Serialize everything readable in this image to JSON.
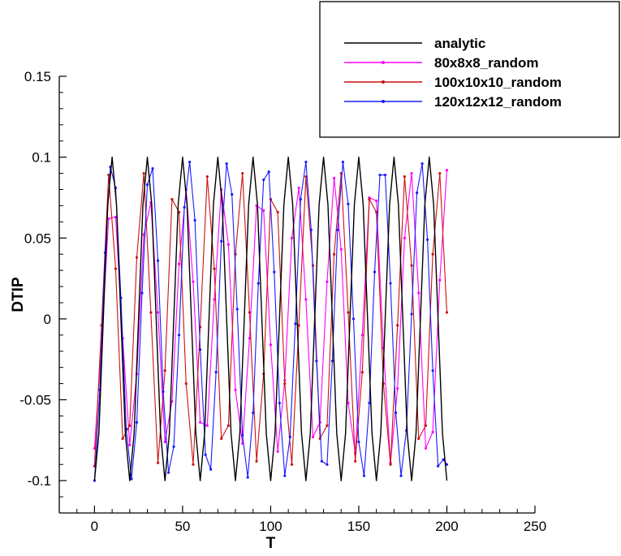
{
  "chart_data": {
    "type": "line",
    "title": "",
    "xlabel": "T",
    "ylabel": "DTIP",
    "xlim": [
      -20,
      250
    ],
    "ylim": [
      -0.12,
      0.15
    ],
    "xticks": [
      0,
      50,
      100,
      150,
      200,
      250
    ],
    "xtick_labels": [
      "0",
      "50",
      "100",
      "150",
      "200",
      "250"
    ],
    "yticks": [
      -0.1,
      -0.05,
      0,
      0.05,
      0.1,
      0.15
    ],
    "ytick_labels": [
      "-0.1",
      "-0.05",
      "0",
      "0.05",
      "0.1",
      "0.15"
    ],
    "grid": false,
    "legend_position": "top-right",
    "series": [
      {
        "name": "analytic",
        "color": "#000000",
        "marker": "none",
        "x": [
          0,
          2.5,
          5,
          7.5,
          10,
          12.5,
          15,
          17.5,
          20,
          22.5,
          25,
          27.5,
          30,
          32.5,
          35,
          37.5,
          40,
          42.5,
          45,
          47.5,
          50,
          52.5,
          55,
          57.5,
          60,
          62.5,
          65,
          67.5,
          70,
          72.5,
          75,
          77.5,
          80,
          82.5,
          85,
          87.5,
          90,
          92.5,
          95,
          97.5,
          100,
          102.5,
          105,
          107.5,
          110,
          112.5,
          115,
          117.5,
          120,
          122.5,
          125,
          127.5,
          130,
          132.5,
          135,
          137.5,
          140,
          142.5,
          145,
          147.5,
          150,
          152.5,
          155,
          157.5,
          160,
          162.5,
          165,
          167.5,
          170,
          172.5,
          175,
          177.5,
          180,
          182.5,
          185,
          187.5,
          190,
          192.5,
          195,
          197.5,
          200
        ],
        "y": [
          -0.1,
          -0.0707,
          0,
          0.0707,
          0.1,
          0.0707,
          0,
          -0.0707,
          -0.1,
          -0.0707,
          0,
          0.0707,
          0.1,
          0.0707,
          0,
          -0.0707,
          -0.1,
          -0.0707,
          0,
          0.0707,
          0.1,
          0.0707,
          0,
          -0.0707,
          -0.1,
          -0.0707,
          0,
          0.0707,
          0.1,
          0.0707,
          0,
          -0.0707,
          -0.1,
          -0.0707,
          0,
          0.0707,
          0.1,
          0.0707,
          0,
          -0.0707,
          -0.1,
          -0.0707,
          0,
          0.0707,
          0.1,
          0.0707,
          0,
          -0.0707,
          -0.1,
          -0.0707,
          0,
          0.0707,
          0.1,
          0.0707,
          0,
          -0.0707,
          -0.1,
          -0.0707,
          0,
          0.0707,
          0.1,
          0.0707,
          0,
          -0.0707,
          -0.1,
          -0.0707,
          0,
          0.0707,
          0.1,
          0.0707,
          0,
          -0.0707,
          -0.1,
          -0.0707,
          0,
          0.0707,
          0.1,
          0.0707,
          0,
          -0.0707,
          -0.1
        ]
      },
      {
        "name": "80x8x8_random",
        "color": "#ff00ff",
        "marker": "dot",
        "x": [
          0,
          4,
          8,
          12,
          16,
          20,
          24,
          28,
          32,
          36,
          40,
          44,
          48,
          52,
          56,
          60,
          64,
          68,
          72,
          76,
          80,
          84,
          88,
          92,
          96,
          100,
          104,
          108,
          112,
          116,
          120,
          124,
          128,
          132,
          136,
          140,
          144,
          148,
          152,
          156,
          160,
          164,
          168,
          172,
          176,
          180,
          184,
          188,
          192,
          196,
          200
        ],
        "y": [
          -0.08,
          -0.015,
          0.062,
          0.063,
          -0.012,
          -0.078,
          -0.034,
          0.052,
          0.072,
          0.004,
          -0.076,
          -0.051,
          0.034,
          0.08,
          0.023,
          -0.064,
          -0.066,
          0.012,
          0.08,
          0.046,
          -0.044,
          -0.077,
          -0.012,
          0.07,
          0.067,
          -0.016,
          -0.082,
          -0.038,
          0.05,
          0.081,
          0.012,
          -0.073,
          -0.064,
          0.023,
          0.087,
          0.043,
          -0.052,
          -0.083,
          -0.01,
          0.075,
          0.073,
          -0.018,
          -0.089,
          -0.043,
          0.05,
          0.09,
          0.016,
          -0.08,
          -0.07,
          0.024,
          0.092
        ]
      },
      {
        "name": "100x10x10_random",
        "color": "#cc1111",
        "marker": "dot",
        "x": [
          0,
          4,
          8,
          12,
          16,
          20,
          24,
          28,
          32,
          36,
          40,
          44,
          48,
          52,
          56,
          60,
          64,
          68,
          72,
          76,
          80,
          84,
          88,
          92,
          96,
          100,
          104,
          108,
          112,
          116,
          120,
          124,
          128,
          132,
          136,
          140,
          144,
          148,
          152,
          156,
          160,
          164,
          168,
          172,
          176,
          180,
          184,
          188,
          192,
          196,
          200
        ],
        "y": [
          -0.091,
          -0.004,
          0.089,
          0.031,
          -0.074,
          -0.066,
          0.038,
          0.09,
          0.004,
          -0.089,
          -0.032,
          0.074,
          0.066,
          -0.04,
          -0.09,
          -0.005,
          0.088,
          0.031,
          -0.074,
          -0.066,
          0.04,
          0.09,
          0.004,
          -0.088,
          -0.034,
          0.074,
          0.066,
          -0.04,
          -0.09,
          -0.004,
          0.088,
          0.033,
          -0.074,
          -0.066,
          0.04,
          0.09,
          0.004,
          -0.088,
          -0.033,
          0.074,
          0.066,
          -0.04,
          -0.09,
          -0.004,
          0.088,
          0.033,
          -0.074,
          -0.066,
          0.04,
          0.09,
          0.004
        ]
      },
      {
        "name": "120x12x12_random",
        "color": "#1a1aff",
        "marker": "dot",
        "x": [
          0,
          3,
          6,
          9,
          12,
          15,
          18,
          21,
          24,
          27,
          30,
          33,
          36,
          39,
          42,
          45,
          48,
          51,
          54,
          57,
          60,
          63,
          66,
          69,
          72,
          75,
          78,
          81,
          84,
          87,
          90,
          93,
          96,
          99,
          102,
          105,
          108,
          111,
          114,
          117,
          120,
          123,
          126,
          129,
          132,
          135,
          138,
          141,
          144,
          147,
          150,
          153,
          156,
          159,
          162,
          165,
          168,
          171,
          174,
          177,
          180,
          183,
          186,
          189,
          192,
          195,
          198,
          200
        ],
        "y": [
          -0.1,
          -0.044,
          0.041,
          0.094,
          0.081,
          0.013,
          -0.068,
          -0.099,
          -0.064,
          0.016,
          0.083,
          0.093,
          0.036,
          -0.045,
          -0.095,
          -0.079,
          -0.01,
          0.069,
          0.097,
          0.061,
          -0.019,
          -0.084,
          -0.093,
          -0.033,
          0.048,
          0.096,
          0.077,
          0.006,
          -0.072,
          -0.098,
          -0.058,
          0.022,
          0.086,
          0.091,
          0.029,
          -0.052,
          -0.097,
          -0.073,
          -0.003,
          0.074,
          0.097,
          0.055,
          -0.026,
          -0.088,
          -0.09,
          -0.026,
          0.055,
          0.097,
          0.071,
          0.0,
          -0.076,
          -0.097,
          -0.052,
          0.029,
          0.089,
          0.089,
          0.022,
          -0.058,
          -0.097,
          -0.069,
          0.003,
          0.078,
          0.096,
          0.049,
          -0.032,
          -0.091,
          -0.087,
          -0.09
        ]
      }
    ]
  }
}
